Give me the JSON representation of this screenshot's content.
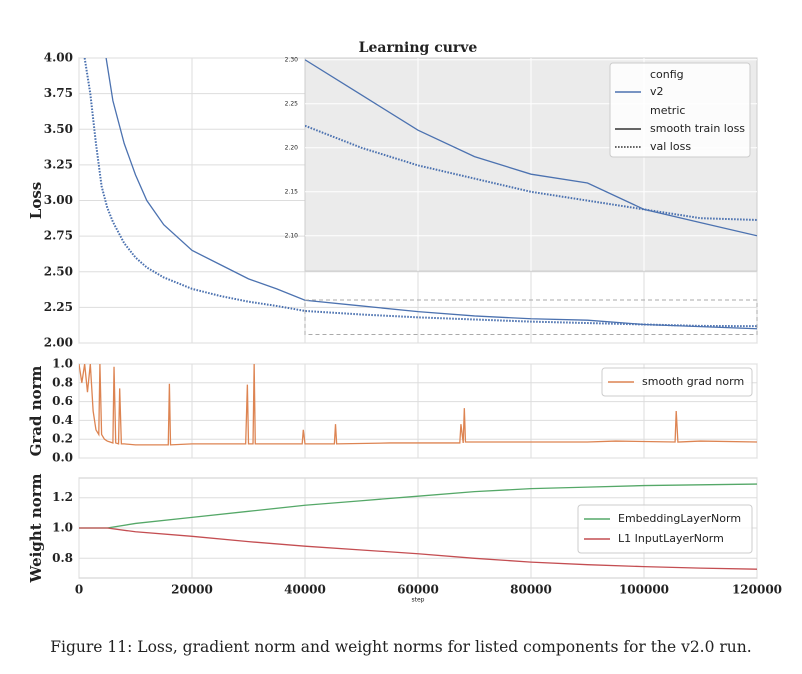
{
  "chart_data": [
    {
      "type": "line",
      "title": "Learning curve",
      "ylabel": "Loss",
      "x": [
        1000,
        2000,
        3000,
        4000,
        5000,
        6000,
        8000,
        10000,
        12000,
        15000,
        20000,
        25000,
        30000,
        35000,
        40000,
        50000,
        60000,
        70000,
        80000,
        90000,
        100000,
        110000,
        120000
      ],
      "series": [
        {
          "name": "smooth train loss",
          "color": "#4c72b0",
          "style": "solid",
          "values": [
            null,
            null,
            null,
            4.2,
            3.95,
            3.7,
            3.4,
            3.18,
            3.0,
            2.83,
            2.65,
            2.55,
            2.45,
            2.38,
            2.3,
            2.26,
            2.22,
            2.19,
            2.17,
            2.16,
            2.13,
            2.115,
            2.1
          ]
        },
        {
          "name": "val loss",
          "color": "#4c72b0",
          "style": "dotted",
          "values": [
            4.0,
            3.75,
            3.4,
            3.1,
            2.95,
            2.85,
            2.7,
            2.6,
            2.53,
            2.46,
            2.38,
            2.33,
            2.29,
            2.26,
            2.225,
            2.2,
            2.18,
            2.165,
            2.15,
            2.14,
            2.13,
            2.12,
            2.118
          ]
        }
      ],
      "config": {
        "title": "config",
        "name": "v2",
        "color": "#4c72b0"
      },
      "metric_title": "metric",
      "xlim": [
        0,
        120000
      ],
      "xticks": [
        0,
        20000,
        40000,
        60000,
        80000,
        100000,
        120000
      ],
      "ylim": [
        2.0,
        4.0
      ],
      "yticks": [
        {
          "value": 2.0,
          "label": "2.00"
        },
        2.25,
        {
          "value": 2.5,
          "label": "2.50"
        },
        2.75,
        {
          "value": 3.0,
          "label": "3.00"
        },
        3.25,
        {
          "value": 3.5,
          "label": "3.50"
        },
        3.75,
        {
          "value": 4.0,
          "label": "4.00"
        }
      ],
      "grid": true,
      "inset": {
        "xlim": [
          40000,
          120000
        ],
        "ylim": [
          2.06,
          2.302
        ],
        "yticks": [
          {
            "value": 2.1,
            "label": "2.10"
          },
          2.15,
          {
            "value": 2.2,
            "label": "2.20"
          },
          2.25,
          {
            "value": 2.3,
            "label": "2.30"
          }
        ]
      }
    },
    {
      "type": "line",
      "ylabel": "Grad norm",
      "x": [
        0,
        500,
        1000,
        1500,
        2000,
        2500,
        3000,
        3500,
        3700,
        4000,
        4500,
        5000,
        5500,
        6000,
        6200,
        6500,
        7000,
        7200,
        7500,
        8000,
        10000,
        15800,
        16000,
        16200,
        20000,
        29500,
        29800,
        30000,
        30800,
        31000,
        31200,
        35000,
        39500,
        39700,
        40000,
        45200,
        45400,
        45600,
        55000,
        65000,
        67400,
        67600,
        68000,
        68200,
        68400,
        72000,
        80000,
        90000,
        95000,
        105500,
        105700,
        106000,
        110000,
        120000
      ],
      "series": [
        {
          "name": "smooth grad norm",
          "color": "#dd8452",
          "style": "solid",
          "values": [
            1.0,
            0.8,
            1.0,
            0.7,
            1.0,
            0.5,
            0.3,
            0.25,
            1.0,
            0.25,
            0.2,
            0.18,
            0.17,
            0.16,
            0.97,
            0.16,
            0.15,
            0.74,
            0.15,
            0.15,
            0.14,
            0.14,
            0.79,
            0.14,
            0.15,
            0.15,
            0.78,
            0.15,
            0.15,
            1.0,
            0.15,
            0.15,
            0.15,
            0.3,
            0.15,
            0.15,
            0.36,
            0.15,
            0.16,
            0.16,
            0.16,
            0.36,
            0.16,
            0.53,
            0.17,
            0.17,
            0.17,
            0.17,
            0.18,
            0.17,
            0.5,
            0.17,
            0.18,
            0.17
          ]
        }
      ],
      "xlim": [
        0,
        120000
      ],
      "xticks": [
        0,
        20000,
        40000,
        60000,
        80000,
        100000,
        120000
      ],
      "ylim": [
        0,
        1.0
      ],
      "yticks": [
        {
          "value": 0,
          "label": "0.0"
        },
        0.2,
        0.4,
        0.6,
        0.8,
        {
          "value": 1.0,
          "label": "1.0"
        }
      ],
      "grid": true
    },
    {
      "type": "line",
      "ylabel": "Weight norm",
      "xlabel": "step",
      "x": [
        0,
        5000,
        10000,
        20000,
        30000,
        40000,
        50000,
        60000,
        70000,
        80000,
        90000,
        100000,
        110000,
        120000
      ],
      "series": [
        {
          "name": "EmbeddingLayerNorm",
          "color": "#55a868",
          "style": "solid",
          "values": [
            1.0,
            1.0,
            1.03,
            1.07,
            1.11,
            1.15,
            1.18,
            1.21,
            1.24,
            1.26,
            1.27,
            1.28,
            1.285,
            1.29
          ]
        },
        {
          "name": "L1 InputLayerNorm",
          "color": "#c44e52",
          "style": "solid",
          "values": [
            1.0,
            1.0,
            0.975,
            0.945,
            0.91,
            0.88,
            0.855,
            0.83,
            0.8,
            0.775,
            0.758,
            0.745,
            0.735,
            0.728
          ]
        }
      ],
      "xlim": [
        0,
        120000
      ],
      "xticks": [
        0,
        20000,
        40000,
        60000,
        80000,
        100000,
        120000
      ],
      "ylim": [
        0.67,
        1.33
      ],
      "yticks": [
        0.8,
        {
          "value": 1.0,
          "label": "1.0"
        },
        1.2
      ],
      "grid": true
    }
  ],
  "caption": "Figure 11: Loss, gradient norm and weight norms for listed components for the v2.0 run."
}
